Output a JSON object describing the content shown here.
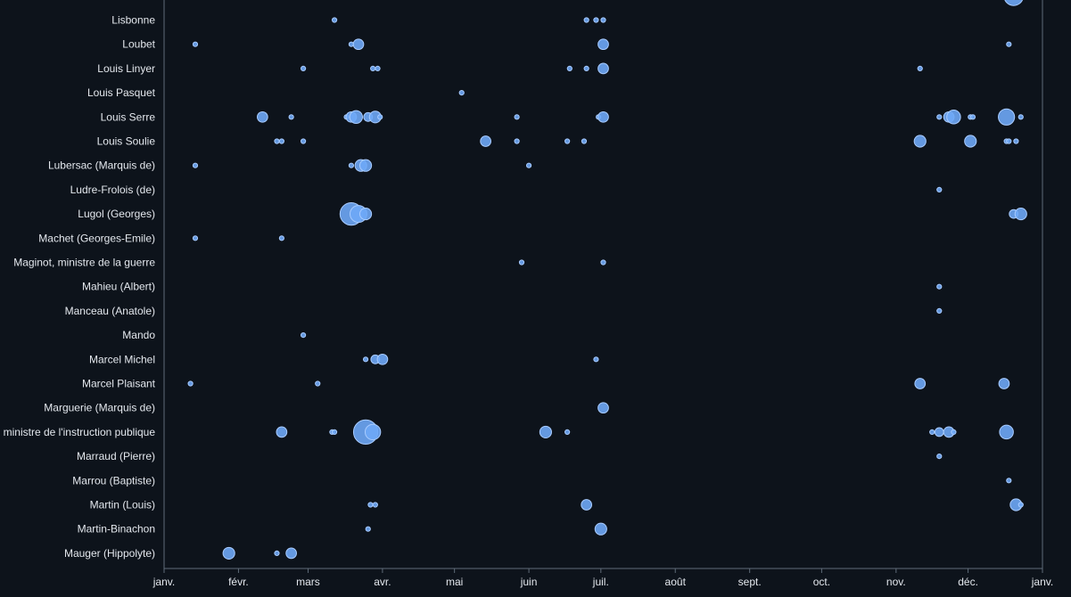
{
  "chart_data": {
    "type": "scatter",
    "title": "",
    "xlabel": "",
    "ylabel": "",
    "x_axis": {
      "type": "date",
      "range": [
        "1920-01-01",
        "1921-01-01"
      ],
      "ticks": [
        {
          "date": "1920-01-01",
          "label": "janv."
        },
        {
          "date": "1920-02-01",
          "label": "févr."
        },
        {
          "date": "1920-03-01",
          "label": "mars"
        },
        {
          "date": "1920-04-01",
          "label": "avr."
        },
        {
          "date": "1920-05-01",
          "label": "mai"
        },
        {
          "date": "1920-06-01",
          "label": "juin"
        },
        {
          "date": "1920-07-01",
          "label": "juil."
        },
        {
          "date": "1920-08-01",
          "label": "août"
        },
        {
          "date": "1920-09-01",
          "label": "sept."
        },
        {
          "date": "1920-10-01",
          "label": "oct."
        },
        {
          "date": "1920-11-01",
          "label": "nov."
        },
        {
          "date": "1920-12-01",
          "label": "déc."
        },
        {
          "date": "1921-01-01",
          "label": "janv."
        }
      ]
    },
    "categories": [
      "Lisbonne",
      "Loubet",
      "Louis Linyer",
      "Louis Pasquet",
      "Louis Serre",
      "Louis Soulie",
      "Lubersac (Marquis de)",
      "Ludre-Frolois (de)",
      "Lugol (Georges)",
      "Machet (Georges-Emile)",
      "Maginot, ministre de la guerre",
      "Mahieu (Albert)",
      "Manceau (Anatole)",
      "Mando",
      "Marcel Michel",
      "Marcel Plaisant",
      "Marguerie (Marquis de)",
      ", ministre de l'instruction publique",
      "Marraud (Pierre)",
      "Marrou (Baptiste)",
      "Martin (Louis)",
      "Martin-Binachon",
      "Mauger (Hippolyte)"
    ],
    "points": [
      {
        "cat": 0,
        "date": "1920-03-12",
        "size": 1
      },
      {
        "cat": 0,
        "date": "1920-06-25",
        "size": 1
      },
      {
        "cat": 0,
        "date": "1920-06-29",
        "size": 1
      },
      {
        "cat": 0,
        "date": "1920-07-02",
        "size": 1
      },
      {
        "cat": 1,
        "date": "1920-01-14",
        "size": 1
      },
      {
        "cat": 1,
        "date": "1920-03-19",
        "size": 1
      },
      {
        "cat": 1,
        "date": "1920-03-22",
        "size": 3
      },
      {
        "cat": 1,
        "date": "1920-07-02",
        "size": 3
      },
      {
        "cat": 1,
        "date": "1920-12-18",
        "size": 1
      },
      {
        "cat": 2,
        "date": "1920-02-28",
        "size": 1
      },
      {
        "cat": 2,
        "date": "1920-03-28",
        "size": 1
      },
      {
        "cat": 2,
        "date": "1920-03-30",
        "size": 1
      },
      {
        "cat": 2,
        "date": "1920-06-18",
        "size": 1
      },
      {
        "cat": 2,
        "date": "1920-06-25",
        "size": 1
      },
      {
        "cat": 2,
        "date": "1920-07-02",
        "size": 3
      },
      {
        "cat": 2,
        "date": "1920-11-11",
        "size": 1
      },
      {
        "cat": 3,
        "date": "1920-05-04",
        "size": 1
      },
      {
        "cat": 4,
        "date": "1920-02-11",
        "size": 3
      },
      {
        "cat": 4,
        "date": "1920-02-23",
        "size": 1
      },
      {
        "cat": 4,
        "date": "1920-03-17",
        "size": 1
      },
      {
        "cat": 4,
        "date": "1920-03-19",
        "size": 3
      },
      {
        "cat": 4,
        "date": "1920-03-21",
        "size": 5
      },
      {
        "cat": 4,
        "date": "1920-03-26",
        "size": 2
      },
      {
        "cat": 4,
        "date": "1920-03-29",
        "size": 4
      },
      {
        "cat": 4,
        "date": "1920-03-31",
        "size": 1
      },
      {
        "cat": 4,
        "date": "1920-05-27",
        "size": 1
      },
      {
        "cat": 4,
        "date": "1920-06-30",
        "size": 1
      },
      {
        "cat": 4,
        "date": "1920-07-02",
        "size": 3
      },
      {
        "cat": 4,
        "date": "1920-11-19",
        "size": 1
      },
      {
        "cat": 4,
        "date": "1920-11-23",
        "size": 3
      },
      {
        "cat": 4,
        "date": "1920-11-25",
        "size": 6
      },
      {
        "cat": 4,
        "date": "1920-12-02",
        "size": 1
      },
      {
        "cat": 4,
        "date": "1920-12-03",
        "size": 1
      },
      {
        "cat": 4,
        "date": "1920-12-17",
        "size": 9
      },
      {
        "cat": 4,
        "date": "1920-12-23",
        "size": 1
      },
      {
        "cat": 5,
        "date": "1920-02-17",
        "size": 1
      },
      {
        "cat": 5,
        "date": "1920-02-19",
        "size": 1
      },
      {
        "cat": 5,
        "date": "1920-02-28",
        "size": 1
      },
      {
        "cat": 5,
        "date": "1920-05-14",
        "size": 3
      },
      {
        "cat": 5,
        "date": "1920-05-27",
        "size": 1
      },
      {
        "cat": 5,
        "date": "1920-06-17",
        "size": 1
      },
      {
        "cat": 5,
        "date": "1920-06-24",
        "size": 1
      },
      {
        "cat": 5,
        "date": "1920-11-11",
        "size": 4
      },
      {
        "cat": 5,
        "date": "1920-12-02",
        "size": 4
      },
      {
        "cat": 5,
        "date": "1920-12-17",
        "size": 1
      },
      {
        "cat": 5,
        "date": "1920-12-18",
        "size": 1
      },
      {
        "cat": 5,
        "date": "1920-12-21",
        "size": 1
      },
      {
        "cat": 6,
        "date": "1920-01-14",
        "size": 1
      },
      {
        "cat": 6,
        "date": "1920-03-19",
        "size": 1
      },
      {
        "cat": 6,
        "date": "1920-03-23",
        "size": 4
      },
      {
        "cat": 6,
        "date": "1920-03-25",
        "size": 4
      },
      {
        "cat": 6,
        "date": "1920-06-01",
        "size": 1
      },
      {
        "cat": 7,
        "date": "1920-11-19",
        "size": 1
      },
      {
        "cat": 8,
        "date": "1920-03-19",
        "size": 20
      },
      {
        "cat": 8,
        "date": "1920-03-22",
        "size": 10
      },
      {
        "cat": 8,
        "date": "1920-03-25",
        "size": 4
      },
      {
        "cat": 8,
        "date": "1920-12-20",
        "size": 2
      },
      {
        "cat": 8,
        "date": "1920-12-23",
        "size": 4
      },
      {
        "cat": 9,
        "date": "1920-01-14",
        "size": 1
      },
      {
        "cat": 9,
        "date": "1920-02-19",
        "size": 1
      },
      {
        "cat": 10,
        "date": "1920-05-29",
        "size": 1
      },
      {
        "cat": 10,
        "date": "1920-07-02",
        "size": 1
      },
      {
        "cat": 11,
        "date": "1920-11-19",
        "size": 1
      },
      {
        "cat": 12,
        "date": "1920-11-19",
        "size": 1
      },
      {
        "cat": 13,
        "date": "1920-02-28",
        "size": 1
      },
      {
        "cat": 14,
        "date": "1920-03-25",
        "size": 1
      },
      {
        "cat": 14,
        "date": "1920-03-29",
        "size": 2
      },
      {
        "cat": 14,
        "date": "1920-04-01",
        "size": 3
      },
      {
        "cat": 14,
        "date": "1920-06-29",
        "size": 1
      },
      {
        "cat": 15,
        "date": "1920-01-12",
        "size": 1
      },
      {
        "cat": 15,
        "date": "1920-03-05",
        "size": 1
      },
      {
        "cat": 15,
        "date": "1920-11-11",
        "size": 3
      },
      {
        "cat": 15,
        "date": "1920-12-16",
        "size": 3
      },
      {
        "cat": 16,
        "date": "1920-07-02",
        "size": 3
      },
      {
        "cat": 17,
        "date": "1920-02-19",
        "size": 3
      },
      {
        "cat": 17,
        "date": "1920-03-11",
        "size": 1
      },
      {
        "cat": 17,
        "date": "1920-03-12",
        "size": 1
      },
      {
        "cat": 17,
        "date": "1920-03-25",
        "size": 24
      },
      {
        "cat": 17,
        "date": "1920-03-28",
        "size": 8
      },
      {
        "cat": 17,
        "date": "1920-06-08",
        "size": 4
      },
      {
        "cat": 17,
        "date": "1920-06-17",
        "size": 1
      },
      {
        "cat": 17,
        "date": "1920-11-16",
        "size": 1
      },
      {
        "cat": 17,
        "date": "1920-11-19",
        "size": 2
      },
      {
        "cat": 17,
        "date": "1920-11-23",
        "size": 3
      },
      {
        "cat": 17,
        "date": "1920-11-25",
        "size": 1
      },
      {
        "cat": 17,
        "date": "1920-12-17",
        "size": 6
      },
      {
        "cat": 18,
        "date": "1920-11-19",
        "size": 1
      },
      {
        "cat": 19,
        "date": "1920-12-18",
        "size": 1
      },
      {
        "cat": 20,
        "date": "1920-03-27",
        "size": 1
      },
      {
        "cat": 20,
        "date": "1920-03-29",
        "size": 1
      },
      {
        "cat": 20,
        "date": "1920-06-25",
        "size": 3
      },
      {
        "cat": 20,
        "date": "1920-12-21",
        "size": 4
      },
      {
        "cat": 20,
        "date": "1920-12-23",
        "size": 1
      },
      {
        "cat": 21,
        "date": "1920-03-26",
        "size": 1
      },
      {
        "cat": 21,
        "date": "1920-07-01",
        "size": 4
      },
      {
        "cat": 22,
        "date": "1920-01-28",
        "size": 4
      },
      {
        "cat": 22,
        "date": "1920-02-17",
        "size": 1
      },
      {
        "cat": 22,
        "date": "1920-02-23",
        "size": 3
      }
    ],
    "partial_top_row": {
      "points": [
        {
          "date": "1920-11-16",
          "size": 1
        },
        {
          "date": "1920-12-20",
          "size": 14
        }
      ]
    },
    "grid": false,
    "legend": "none",
    "colors": {
      "background": "#0d131b",
      "marker_fill": "#6ea8f7",
      "marker_edge": "#a9ccff",
      "text": "#e4e8ee",
      "axis": "#5f6b78"
    }
  }
}
